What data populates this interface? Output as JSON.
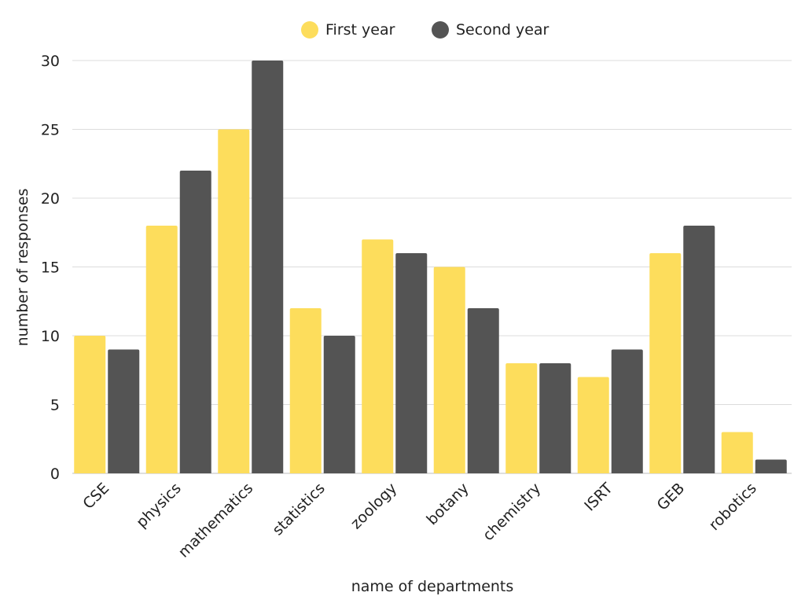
{
  "chart_data": {
    "type": "bar",
    "title": "",
    "xlabel": "name of departments",
    "ylabel": "number of responses",
    "categories": [
      "CSE",
      "physics",
      "mathematics",
      "statistics",
      "zoology",
      "botany",
      "chemistry",
      "ISRT",
      "GEB",
      "robotics"
    ],
    "series": [
      {
        "name": "First year",
        "color": "#FDDD5C",
        "values": [
          10,
          18,
          25,
          12,
          17,
          15,
          8,
          7,
          16,
          3
        ]
      },
      {
        "name": "Second year",
        "color": "#545454",
        "values": [
          9,
          22,
          30,
          10,
          16,
          12,
          8,
          9,
          18,
          1
        ]
      }
    ],
    "ylim": [
      0,
      30
    ],
    "yticks": [
      0,
      5,
      10,
      15,
      20,
      25,
      30
    ],
    "grid": true,
    "legend_position": "top-center"
  }
}
